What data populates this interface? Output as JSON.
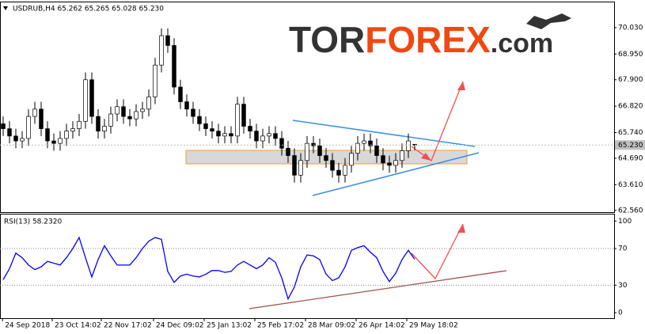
{
  "header": "USDRUB,H4  65.262 65.265 65.028 65.230",
  "logo": {
    "part1": "TOR",
    "part2": "FOREX",
    "part3": ".com"
  },
  "chart_data": [
    {
      "type": "candlestick",
      "x": [
        0.5,
        1.5,
        2.5,
        3.5,
        4.5,
        5.5,
        6.5,
        7.5,
        8.5,
        9.5,
        10.5,
        11.5,
        12.5,
        13.5,
        14.5,
        15.5,
        16.5,
        17.5,
        18.5,
        19.5,
        20.5,
        21.5,
        22.5,
        23.5,
        24.5,
        25.5,
        26.5,
        27.5,
        28.5,
        29.5,
        30.5,
        31.5,
        32.5,
        33.5,
        34.5,
        35.5,
        36.5,
        37.5,
        38.5,
        39.5,
        40.5,
        41.5,
        42.5,
        43.5,
        44.5,
        45.5,
        46.5,
        47.5,
        48.5,
        49.5,
        50.5,
        51.5,
        52.5,
        53.5,
        54.5,
        55.5,
        56.5,
        57.5,
        58.5,
        59.5,
        60.5,
        61.5,
        62.5,
        63.5,
        64.5,
        65.5
      ],
      "open": [
        66.1,
        65.9,
        65.6,
        65.4,
        65.5,
        66.4,
        66.7,
        65.9,
        65.4,
        65.3,
        65.5,
        65.8,
        65.9,
        66.2,
        67.9,
        66.4,
        65.8,
        66.0,
        66.5,
        66.8,
        66.4,
        66.3,
        66.6,
        66.7,
        67.2,
        68.5,
        69.7,
        69.3,
        67.6,
        67.0,
        66.7,
        66.4,
        66.1,
        65.9,
        65.8,
        65.6,
        65.7,
        65.6,
        66.9,
        66.0,
        65.8,
        65.4,
        65.6,
        65.7,
        65.5,
        65.1,
        64.8,
        64.0,
        64.6,
        65.3,
        65.2,
        64.8,
        64.6,
        64.2,
        64.0,
        64.4,
        64.9,
        65.3,
        65.4,
        65.2,
        64.8,
        64.5,
        64.4,
        64.6,
        65.0,
        65.262
      ],
      "high": [
        66.4,
        66.2,
        65.9,
        65.8,
        66.7,
        67.0,
        67.0,
        66.2,
        65.7,
        65.8,
        66.1,
        66.2,
        66.5,
        68.2,
        68.2,
        66.7,
        66.3,
        66.8,
        67.1,
        67.1,
        66.7,
        66.9,
        67.0,
        67.5,
        68.8,
        70.0,
        70.0,
        69.6,
        67.9,
        67.3,
        67.0,
        66.7,
        66.4,
        66.2,
        66.1,
        66.0,
        66.0,
        67.2,
        67.2,
        66.3,
        66.1,
        65.9,
        66.0,
        66.0,
        65.8,
        65.4,
        65.1,
        64.9,
        65.6,
        65.6,
        65.5,
        65.1,
        64.9,
        64.5,
        64.7,
        65.2,
        65.6,
        65.7,
        65.7,
        65.5,
        65.1,
        64.8,
        64.9,
        65.3,
        65.7,
        65.265
      ],
      "low": [
        65.6,
        65.3,
        65.1,
        65.1,
        65.2,
        66.1,
        65.6,
        65.1,
        65.0,
        65.0,
        65.2,
        65.5,
        65.6,
        65.9,
        66.1,
        65.5,
        65.5,
        65.7,
        66.2,
        66.1,
        66.0,
        66.0,
        66.3,
        66.4,
        66.9,
        68.2,
        69.0,
        67.3,
        66.7,
        66.4,
        66.1,
        65.8,
        65.6,
        65.5,
        65.3,
        65.3,
        65.3,
        65.3,
        65.7,
        65.5,
        65.1,
        65.1,
        65.3,
        65.2,
        64.8,
        64.5,
        63.7,
        63.7,
        64.3,
        64.9,
        64.5,
        64.3,
        63.9,
        63.7,
        63.7,
        64.1,
        64.6,
        65.0,
        64.9,
        64.5,
        64.2,
        64.1,
        64.1,
        64.3,
        64.7,
        65.028
      ],
      "close": [
        65.9,
        65.6,
        65.4,
        65.5,
        66.4,
        66.7,
        65.9,
        65.4,
        65.3,
        65.5,
        65.8,
        65.9,
        66.2,
        67.9,
        66.4,
        65.8,
        66.0,
        66.5,
        66.8,
        66.4,
        66.3,
        66.6,
        66.7,
        67.2,
        68.5,
        69.7,
        69.3,
        67.6,
        67.0,
        66.7,
        66.4,
        66.1,
        65.9,
        65.8,
        65.6,
        65.7,
        65.6,
        66.9,
        66.0,
        65.8,
        65.4,
        65.6,
        65.7,
        65.5,
        65.1,
        64.8,
        64.0,
        64.6,
        65.3,
        65.2,
        64.8,
        64.6,
        64.2,
        64.0,
        64.4,
        64.9,
        65.3,
        65.4,
        65.2,
        64.8,
        64.5,
        64.4,
        64.6,
        65.0,
        65.4,
        65.23
      ],
      "up_color": "#ffffff",
      "down_color": "#000000",
      "wick_color": "#000000",
      "last_price": {
        "value": 65.23,
        "label": "65.230"
      },
      "xlim": [
        0,
        97
      ],
      "ylim": [
        62.49,
        70.9
      ],
      "yticks": [
        {
          "value": 70.03,
          "label": "70.030"
        },
        {
          "value": 68.95,
          "label": "68.950"
        },
        {
          "value": 67.9,
          "label": "67.900"
        },
        {
          "value": 66.82,
          "label": "66.820"
        },
        {
          "value": 65.74,
          "label": "65.740"
        },
        {
          "value": 64.69,
          "label": "64.690"
        },
        {
          "value": 63.61,
          "label": "63.610"
        },
        {
          "value": 62.56,
          "label": "62.560"
        }
      ]
    },
    {
      "type": "line",
      "title": "RSI(13) 58.2320",
      "x": [
        0.5,
        1.5,
        2.5,
        3.5,
        4.5,
        5.5,
        6.5,
        7.5,
        8.5,
        9.5,
        10.5,
        11.5,
        12.5,
        13.5,
        14.5,
        15.5,
        16.5,
        17.5,
        18.5,
        19.5,
        20.5,
        21.5,
        22.5,
        23.5,
        24.5,
        25.5,
        26.5,
        27.5,
        28.5,
        29.5,
        30.5,
        31.5,
        32.5,
        33.5,
        34.5,
        35.5,
        36.5,
        37.5,
        38.5,
        39.5,
        40.5,
        41.5,
        42.5,
        43.5,
        44.5,
        45.5,
        46.5,
        47.5,
        48.5,
        49.5,
        50.5,
        51.5,
        52.5,
        53.5,
        54.5,
        55.5,
        56.5,
        57.5,
        58.5,
        59.5,
        60.5,
        61.5,
        62.5,
        63.5,
        64.5,
        65.5
      ],
      "values": [
        36,
        48,
        65,
        60,
        52,
        47,
        50,
        56,
        54,
        52,
        60,
        70,
        82,
        60,
        39,
        58,
        73,
        62,
        52,
        52,
        52,
        60,
        70,
        78,
        82,
        80,
        45,
        33,
        40,
        42,
        40,
        39,
        42,
        46,
        46,
        44,
        45,
        52,
        56,
        52,
        48,
        52,
        60,
        55,
        38,
        15,
        28,
        50,
        63,
        62,
        58,
        42,
        35,
        38,
        50,
        68,
        71,
        73,
        66,
        60,
        45,
        34,
        43,
        58,
        68,
        58.23
      ],
      "color": "#0000ff",
      "xlim": [
        0,
        97
      ],
      "ylim": [
        -6,
        108
      ],
      "yticks": [
        100,
        70,
        30,
        0
      ],
      "levels": [
        70,
        30
      ],
      "xticks": [
        {
          "value": 0.4,
          "label": "24 Sep 2018"
        },
        {
          "value": 8.25,
          "label": "23 Oct 14:02"
        },
        {
          "value": 16,
          "label": "22 Nov 17:02"
        },
        {
          "value": 24.25,
          "label": "24 Dec 09:02"
        },
        {
          "value": 32.25,
          "label": "25 Jan 13:02"
        },
        {
          "value": 40.25,
          "label": "25 Feb 17:02"
        },
        {
          "value": 48.25,
          "label": "28 Mar 09:02"
        },
        {
          "value": 56.25,
          "label": "26 Apr 14:02"
        },
        {
          "value": 64.25,
          "label": "29 May 18:02"
        }
      ]
    }
  ]
}
